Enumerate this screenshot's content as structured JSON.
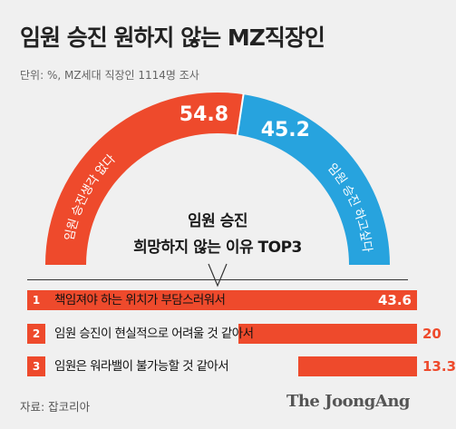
{
  "header": {
    "title": "임원 승진 원하지 않는 MZ직장인",
    "subtitle": "단위: %, MZ세대 직장인 1114명 조사"
  },
  "colors": {
    "orange": "#ee4a2c",
    "blue": "#27a3de",
    "background": "#f0f0f0"
  },
  "chart_data": [
    {
      "type": "pie",
      "slices": [
        {
          "label": "임원 승진생각 없다",
          "value": 54.8,
          "value_label": "54.8",
          "color": "#ee4a2c"
        },
        {
          "label": "임원 승진 하고싶다",
          "value": 45.2,
          "value_label": "45.2",
          "color": "#27a3de"
        }
      ]
    },
    {
      "type": "bar",
      "title_lines": [
        "임원 승진",
        "희망하지 않는 이유 TOP3"
      ],
      "xlim": [
        0,
        43.6
      ],
      "items": [
        {
          "rank": "1",
          "label": "책임져야 하는 위치가 부담스러워서",
          "value": 43.6,
          "value_label": "43.6"
        },
        {
          "rank": "2",
          "label": "임원 승진이 현실적으로 어려울 것 같아서",
          "value": 20,
          "value_label": "20"
        },
        {
          "rank": "3",
          "label": "임원은 워라밸이 불가능할 것 같아서",
          "value": 13.3,
          "value_label": "13.3"
        }
      ]
    }
  ],
  "footer": {
    "source": "자료: 잡코리아",
    "logo": "The JoongAng"
  }
}
